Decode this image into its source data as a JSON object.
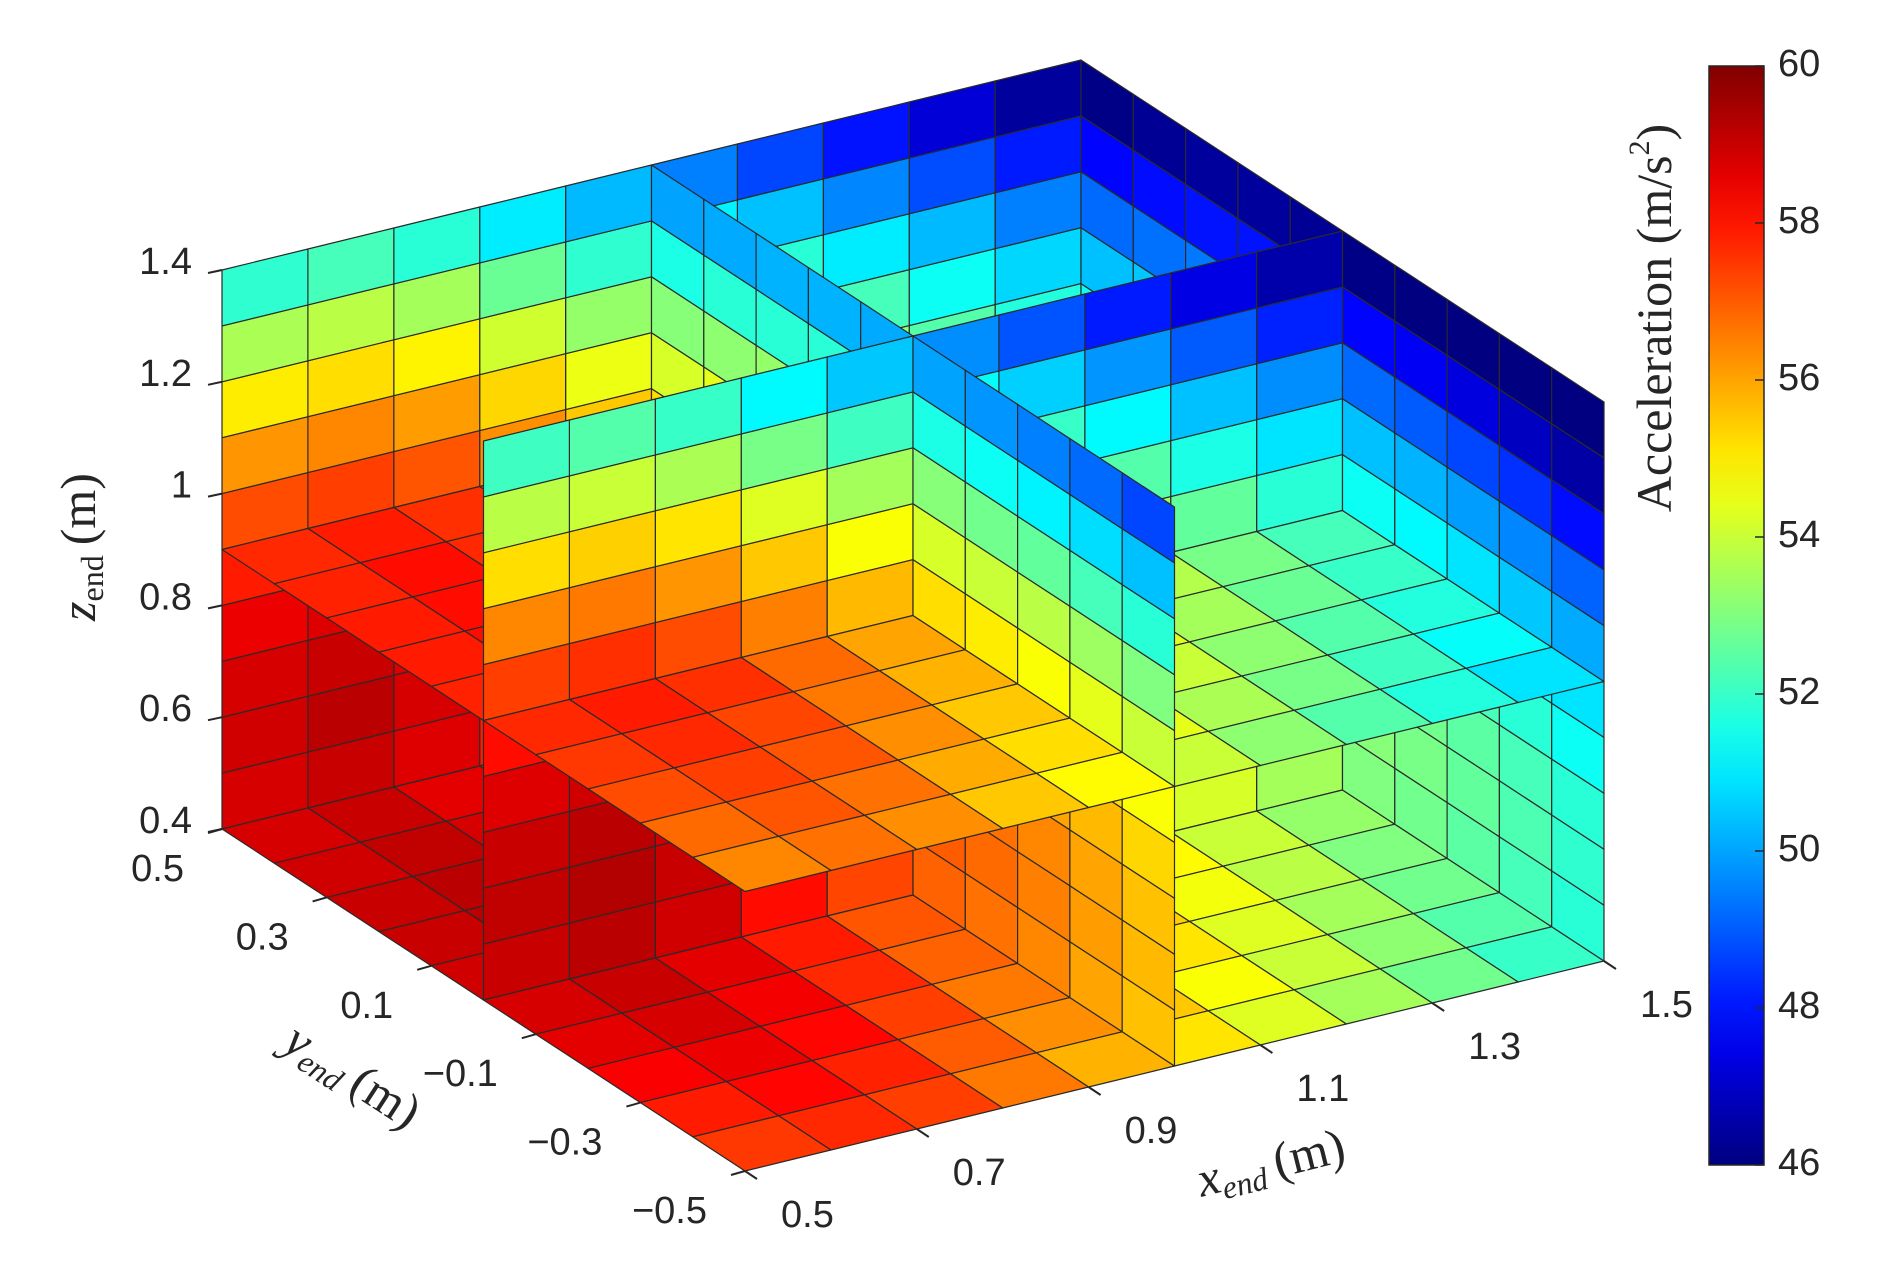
{
  "chart_data": {
    "type": "slice3d",
    "colormap": "jet",
    "clim": [
      46,
      60
    ],
    "cticks": [
      46,
      48,
      50,
      52,
      54,
      56,
      58,
      60
    ],
    "colorbar_label": {
      "text": "Acceleration (m/s",
      "superscript": "2",
      "suffix": ")"
    },
    "xlabel": {
      "symbol": "x",
      "subscript": "end",
      "unit": "(m)"
    },
    "ylabel": {
      "symbol": "y",
      "subscript": "end",
      "unit": "(m)"
    },
    "zlabel": {
      "symbol": "z",
      "subscript": "end",
      "unit": "(m)"
    },
    "xlim": [
      0.5,
      1.5
    ],
    "ylim": [
      -0.5,
      0.5
    ],
    "zlim": [
      0.4,
      1.4
    ],
    "xticks": [
      0.5,
      0.7,
      0.9,
      1.1,
      1.3,
      1.5
    ],
    "yticks": [
      0.5,
      0.3,
      0.1,
      {
        "value": -0.1,
        "label": "−0.1"
      },
      {
        "value": -0.3,
        "label": "−0.3"
      },
      {
        "value": -0.5,
        "label": "−0.5"
      }
    ],
    "zticks": [
      0.4,
      0.6,
      0.8,
      1,
      1.2,
      1.4
    ],
    "slices": [
      {
        "x": 1.0,
        "values": [
          [
            55.6,
            56.0,
            56.4,
            56.7,
            56.9,
            57.0,
            57.1,
            57.1,
            57.0,
            56.9
          ],
          [
            55.7,
            56.1,
            56.5,
            56.8,
            57.0,
            57.1,
            57.2,
            57.2,
            57.1,
            57.0
          ],
          [
            55.6,
            56.0,
            56.4,
            56.7,
            56.9,
            57.0,
            57.1,
            57.1,
            57.0,
            56.9
          ],
          [
            55.3,
            55.7,
            56.0,
            56.3,
            56.5,
            56.7,
            56.7,
            56.7,
            56.7,
            56.5
          ],
          [
            54.7,
            55.2,
            55.5,
            55.8,
            56.0,
            56.1,
            56.2,
            56.2,
            56.1,
            56.0
          ],
          [
            54.0,
            54.4,
            54.7,
            55.0,
            55.2,
            55.4,
            55.4,
            55.4,
            55.4,
            55.2
          ],
          [
            53.0,
            53.4,
            53.8,
            54.0,
            54.2,
            54.4,
            54.5,
            54.5,
            54.4,
            54.2
          ],
          [
            51.8,
            52.2,
            52.6,
            52.8,
            53.1,
            53.2,
            53.3,
            53.3,
            53.2,
            53.1
          ],
          [
            50.4,
            50.8,
            51.1,
            51.4,
            51.6,
            51.8,
            51.8,
            51.8,
            51.8,
            51.6
          ],
          [
            48.7,
            49.2,
            49.5,
            49.8,
            50.0,
            50.1,
            50.2,
            50.2,
            50.1,
            50.0
          ]
        ]
      },
      {
        "x": 1.5,
        "values": [
          [
            51.8,
            52.2,
            52.5,
            52.8,
            53.0,
            53.2,
            53.2,
            53.2,
            53.2,
            53.0
          ],
          [
            51.9,
            52.3,
            52.6,
            52.9,
            53.1,
            53.3,
            53.3,
            53.3,
            53.3,
            53.1
          ],
          [
            51.8,
            52.2,
            52.5,
            52.8,
            53.0,
            53.2,
            53.2,
            53.2,
            53.2,
            53.0
          ],
          [
            51.4,
            51.8,
            52.2,
            52.5,
            52.7,
            52.8,
            52.9,
            52.9,
            52.8,
            52.7
          ],
          [
            50.9,
            51.3,
            51.7,
            51.9,
            52.1,
            52.3,
            52.4,
            52.4,
            52.3,
            52.1
          ],
          [
            50.1,
            50.5,
            50.9,
            51.2,
            51.4,
            51.5,
            51.6,
            51.6,
            51.5,
            51.4
          ],
          [
            49.1,
            49.6,
            49.9,
            50.2,
            50.4,
            50.5,
            50.6,
            50.6,
            50.5,
            50.4
          ],
          [
            47.9,
            48.4,
            48.7,
            49.0,
            49.2,
            49.3,
            49.4,
            49.4,
            49.3,
            49.2
          ],
          [
            46.5,
            46.9,
            47.3,
            47.6,
            47.8,
            47.9,
            48.0,
            48.0,
            47.9,
            47.8
          ],
          [
            44.9,
            45.3,
            45.7,
            45.9,
            46.1,
            46.3,
            46.4,
            46.4,
            46.3,
            46.1
          ]
        ]
      },
      {
        "y": 0,
        "values": [
          [
            59.0,
            59.2,
            58.9,
            58.1,
            57.3,
            56.6,
            55.8,
            55.0,
            54.2,
            53.5
          ],
          [
            59.1,
            59.3,
            59.0,
            58.2,
            57.4,
            56.7,
            55.9,
            55.1,
            54.4,
            53.6
          ],
          [
            59.0,
            59.2,
            58.9,
            58.1,
            57.3,
            56.6,
            55.8,
            55.0,
            54.2,
            53.5
          ],
          [
            58.7,
            58.9,
            58.5,
            57.8,
            57.0,
            56.2,
            55.5,
            54.7,
            53.9,
            53.1
          ],
          [
            58.1,
            58.4,
            58.0,
            57.2,
            56.5,
            55.7,
            54.9,
            54.1,
            53.4,
            52.6
          ],
          [
            57.4,
            57.6,
            57.2,
            56.5,
            55.7,
            54.9,
            54.2,
            53.4,
            52.6,
            51.8
          ],
          [
            56.4,
            56.6,
            56.2,
            55.5,
            54.7,
            53.9,
            53.2,
            52.4,
            51.6,
            50.9
          ],
          [
            55.2,
            55.4,
            55.1,
            54.3,
            53.5,
            52.7,
            52.0,
            51.2,
            50.4,
            49.7
          ],
          [
            53.8,
            54.0,
            53.6,
            52.9,
            52.1,
            51.3,
            50.6,
            49.8,
            49.0,
            48.2
          ],
          [
            52.1,
            52.4,
            52.0,
            51.2,
            50.5,
            49.7,
            48.9,
            48.1,
            47.4,
            46.6
          ]
        ]
      },
      {
        "y": 0.5,
        "values": [
          [
            58.8,
            59.0,
            58.7,
            57.9,
            57.1,
            56.4,
            55.6,
            54.8,
            54.1,
            53.3
          ],
          [
            58.9,
            59.2,
            58.8,
            58.0,
            57.3,
            56.5,
            55.7,
            54.9,
            54.2,
            53.4
          ],
          [
            58.8,
            59.0,
            58.7,
            57.9,
            57.1,
            56.4,
            55.6,
            54.8,
            54.1,
            53.3
          ],
          [
            58.5,
            58.7,
            58.4,
            57.6,
            56.8,
            56.0,
            55.3,
            54.5,
            53.7,
            53.0
          ],
          [
            57.9,
            58.2,
            57.8,
            57.0,
            56.3,
            55.5,
            54.7,
            54.0,
            53.2,
            52.4
          ],
          [
            57.2,
            57.4,
            57.1,
            56.3,
            55.5,
            54.7,
            54.0,
            53.2,
            52.4,
            51.7
          ],
          [
            56.2,
            56.4,
            56.1,
            55.3,
            54.5,
            53.8,
            53.0,
            52.2,
            51.4,
            50.7
          ],
          [
            55.0,
            55.2,
            54.9,
            54.1,
            53.3,
            52.6,
            51.8,
            51.0,
            50.3,
            49.5
          ],
          [
            53.6,
            53.8,
            53.5,
            52.7,
            51.9,
            51.1,
            50.4,
            49.6,
            48.8,
            48.1
          ],
          [
            51.9,
            52.2,
            51.8,
            51.0,
            50.3,
            49.5,
            48.7,
            48.0,
            47.2,
            46.4
          ]
        ]
      },
      {
        "z": 0.4,
        "values": [
          [
            57.5,
            57.7,
            57.4,
            56.6,
            55.8,
            55.1,
            54.3,
            53.5,
            52.8,
            52.0
          ],
          [
            57.9,
            58.2,
            57.8,
            57.0,
            56.3,
            55.5,
            54.7,
            54.0,
            53.2,
            52.4
          ],
          [
            58.3,
            58.5,
            58.2,
            57.4,
            56.6,
            55.8,
            55.1,
            54.3,
            53.5,
            52.8
          ],
          [
            58.6,
            58.8,
            58.4,
            57.7,
            56.9,
            56.1,
            55.4,
            54.6,
            53.8,
            53.0
          ],
          [
            58.8,
            59.0,
            58.6,
            57.9,
            57.1,
            56.3,
            55.6,
            54.8,
            54.0,
            53.3
          ],
          [
            58.9,
            59.1,
            58.8,
            58.0,
            57.2,
            56.5,
            55.7,
            54.9,
            54.2,
            53.4
          ],
          [
            59.0,
            59.2,
            58.9,
            58.1,
            57.3,
            56.5,
            55.8,
            55.0,
            54.2,
            53.5
          ],
          [
            59.0,
            59.2,
            58.9,
            58.1,
            57.3,
            56.5,
            55.8,
            55.0,
            54.2,
            53.5
          ],
          [
            58.9,
            59.1,
            58.8,
            58.0,
            57.2,
            56.5,
            55.7,
            54.9,
            54.2,
            53.4
          ],
          [
            58.8,
            59.0,
            58.6,
            57.9,
            57.1,
            56.3,
            55.6,
            54.8,
            54.0,
            53.3
          ]
        ]
      },
      {
        "z": 0.9,
        "values": [
          [
            56.4,
            56.7,
            56.3,
            55.5,
            54.8,
            54.0,
            53.2,
            52.4,
            51.7,
            50.9
          ],
          [
            56.8,
            57.1,
            56.7,
            55.9,
            55.2,
            54.4,
            53.6,
            52.9,
            52.1,
            51.3
          ],
          [
            57.2,
            57.4,
            57.1,
            56.3,
            55.5,
            54.8,
            54.0,
            53.2,
            52.4,
            51.7
          ],
          [
            57.5,
            57.7,
            57.3,
            56.6,
            55.8,
            55.0,
            54.3,
            53.5,
            52.7,
            52.0
          ],
          [
            57.7,
            57.9,
            57.6,
            56.8,
            56.0,
            55.2,
            54.5,
            53.7,
            52.9,
            52.2
          ],
          [
            57.8,
            58.1,
            57.7,
            56.9,
            56.2,
            55.4,
            54.6,
            53.8,
            53.1,
            52.3
          ],
          [
            57.9,
            58.1,
            57.8,
            57.0,
            56.2,
            55.5,
            54.7,
            53.9,
            53.1,
            52.4
          ],
          [
            57.9,
            58.1,
            57.8,
            57.0,
            56.2,
            55.5,
            54.7,
            53.9,
            53.1,
            52.4
          ],
          [
            57.8,
            58.1,
            57.7,
            56.9,
            56.2,
            55.4,
            54.6,
            53.8,
            53.1,
            52.3
          ],
          [
            57.7,
            57.9,
            57.6,
            56.8,
            56.0,
            55.2,
            54.5,
            53.7,
            52.9,
            52.2
          ]
        ]
      }
    ]
  }
}
